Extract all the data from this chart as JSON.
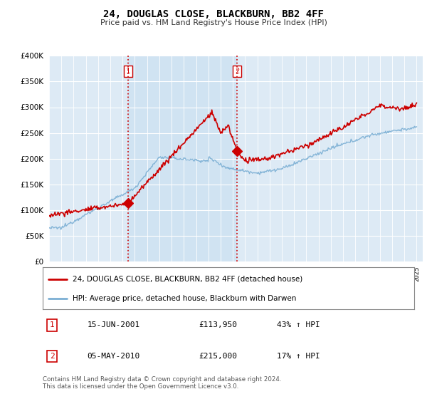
{
  "title": "24, DOUGLAS CLOSE, BLACKBURN, BB2 4FF",
  "subtitle": "Price paid vs. HM Land Registry's House Price Index (HPI)",
  "legend_line1": "24, DOUGLAS CLOSE, BLACKBURN, BB2 4FF (detached house)",
  "legend_line2": "HPI: Average price, detached house, Blackburn with Darwen",
  "sale1_label": "1",
  "sale1_date": "15-JUN-2001",
  "sale1_price": "£113,950",
  "sale1_hpi": "43% ↑ HPI",
  "sale2_label": "2",
  "sale2_date": "05-MAY-2010",
  "sale2_price": "£215,000",
  "sale2_hpi": "17% ↑ HPI",
  "footnote": "Contains HM Land Registry data © Crown copyright and database right 2024.\nThis data is licensed under the Open Government Licence v3.0.",
  "hpi_color": "#7bafd4",
  "price_color": "#cc0000",
  "vline_color": "#cc0000",
  "background_plot": "#ddeaf5",
  "shade_color": "#c8dff0",
  "background_fig": "#ffffff",
  "ylim": [
    0,
    400000
  ],
  "sale1_x": 2001.46,
  "sale1_y": 113950,
  "sale2_x": 2010.34,
  "sale2_y": 215000,
  "xmin": 1995.0,
  "xmax": 2025.5
}
